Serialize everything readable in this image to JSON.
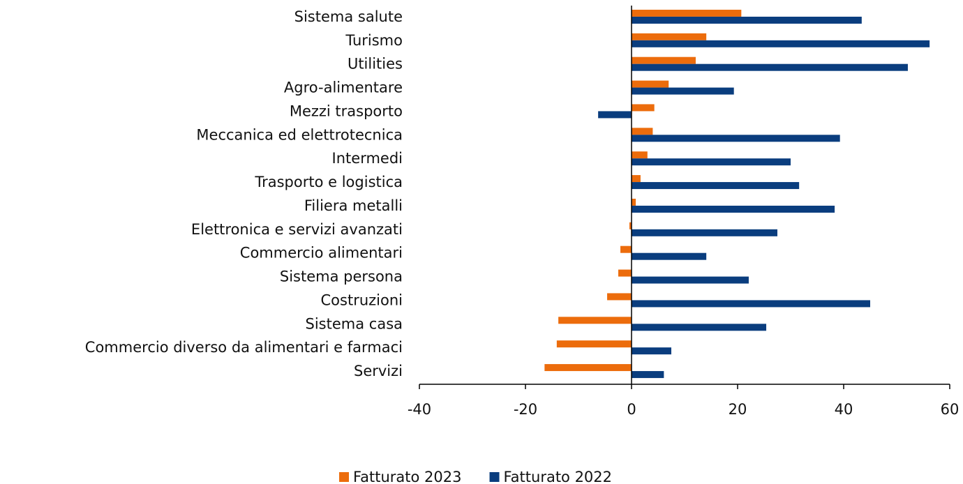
{
  "chart_data": {
    "type": "hbar",
    "categories": [
      "Sistema salute",
      "Turismo",
      "Utilities",
      "Agro-alimentare",
      "Mezzi trasporto",
      "Meccanica ed elettrotecnica",
      "Intermedi",
      "Trasporto e logistica",
      "Filiera metalli",
      "Elettronica e servizi avanzati",
      "Commercio alimentari",
      "Sistema persona",
      "Costruzioni",
      "Sistema casa",
      "Commercio diverso da alimentari e farmaci",
      "Servizi"
    ],
    "series": [
      {
        "name": "Fatturato 2023",
        "color": "#ec6c0c",
        "values": [
          20.7,
          14.1,
          12.1,
          7.0,
          4.3,
          4.0,
          3.0,
          1.7,
          0.8,
          -0.4,
          -2.1,
          -2.5,
          -4.6,
          -13.8,
          -14.1,
          -16.4
        ]
      },
      {
        "name": "Fatturato 2022",
        "color": "#0a3d7e",
        "values": [
          43.4,
          56.2,
          52.1,
          19.3,
          -6.3,
          39.3,
          30.0,
          31.6,
          38.3,
          27.5,
          14.1,
          22.1,
          45.0,
          25.4,
          7.5,
          6.1
        ]
      }
    ],
    "xlim": [
      -40,
      60
    ],
    "xticks": [
      -40,
      -20,
      0,
      20,
      40,
      60
    ],
    "legend": "bottom"
  }
}
